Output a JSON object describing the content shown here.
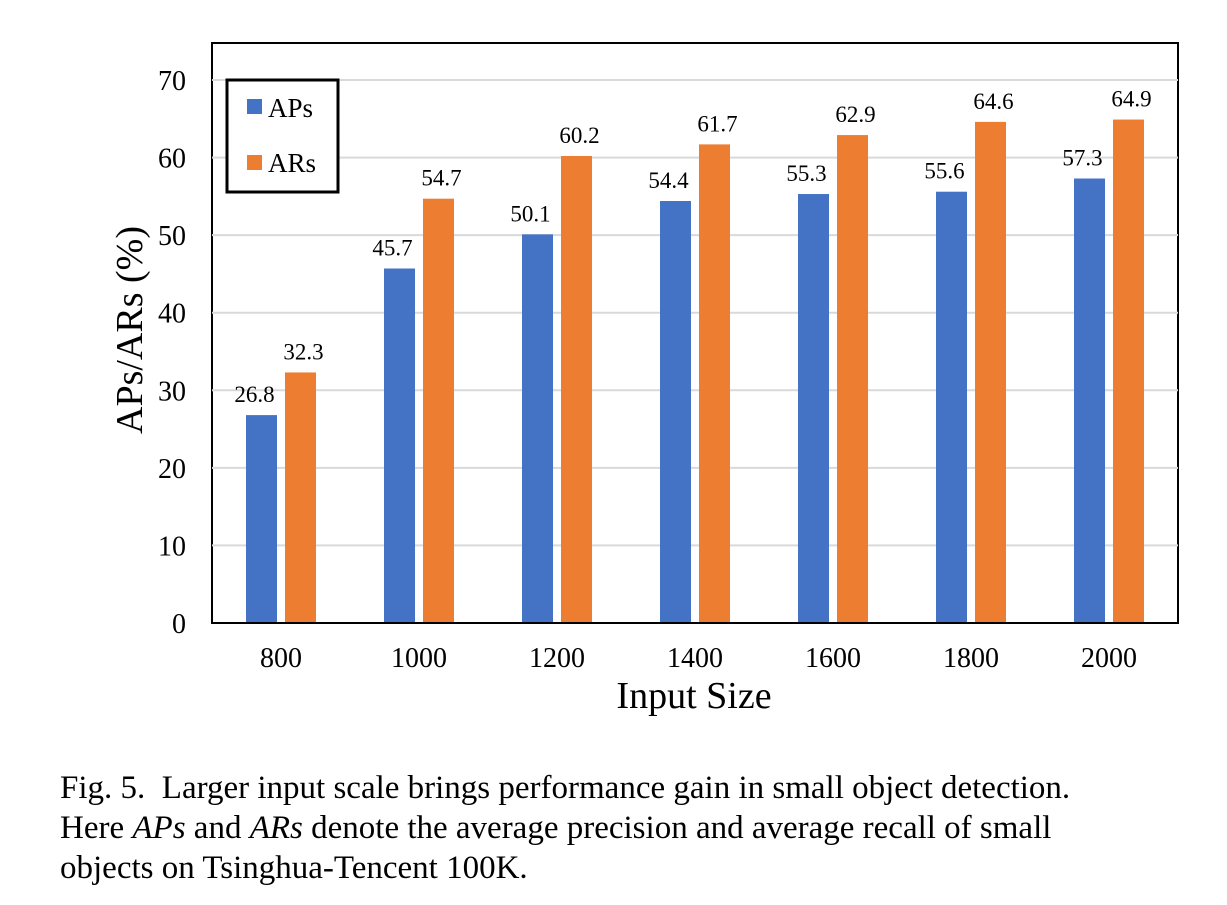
{
  "chart_data": {
    "type": "bar",
    "categories": [
      "800",
      "1000",
      "1200",
      "1400",
      "1600",
      "1800",
      "2000"
    ],
    "series": [
      {
        "name": "APs",
        "values": [
          26.8,
          45.7,
          50.1,
          54.4,
          55.3,
          55.6,
          57.3
        ],
        "color": "#4472C4"
      },
      {
        "name": "ARs",
        "values": [
          32.3,
          54.7,
          60.2,
          61.7,
          62.9,
          64.6,
          64.9
        ],
        "color": "#ED7D31"
      }
    ],
    "title": "",
    "xlabel": "Input Size",
    "ylabel": "APs/ARs (%)",
    "ylim": [
      0,
      70
    ],
    "yticks": [
      "0",
      "10",
      "20",
      "30",
      "40",
      "50",
      "60",
      "70"
    ],
    "grid": true,
    "legend": "top-left"
  },
  "caption": {
    "prefix": "Fig. 5.",
    "line1": "Larger input scale brings performance gain in small object detection.",
    "line2_a": "Here ",
    "line2_aps": "APs",
    "line2_b": " and ",
    "line2_ars": "ARs",
    "line2_c": " denote the average precision and average recall of small",
    "line3": "objects on Tsinghua-Tencent 100K."
  }
}
